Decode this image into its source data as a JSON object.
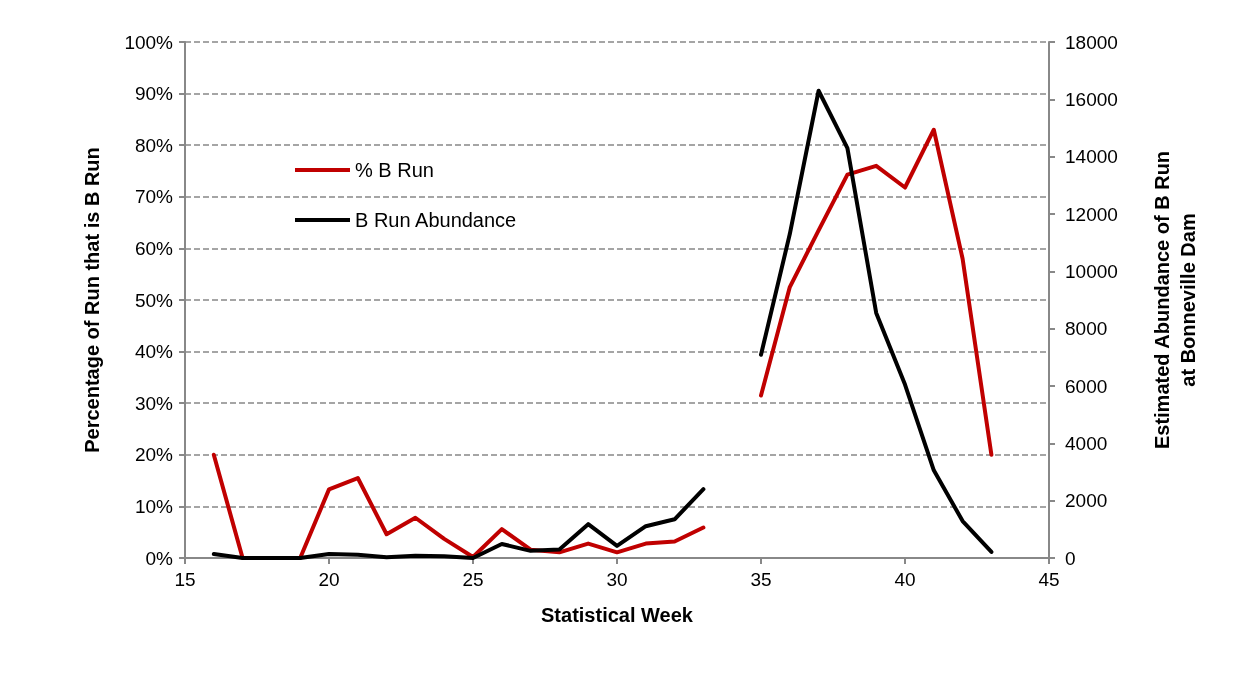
{
  "chart_data": {
    "type": "line",
    "xlabel": "Statistical Week",
    "ylabel": "Percentage of Run that is B Run",
    "y2label": "Estimated Abundance of B Run\nat Bonneville Dam",
    "x": [
      16,
      17,
      18,
      19,
      20,
      21,
      22,
      23,
      24,
      25,
      26,
      27,
      28,
      29,
      30,
      31,
      32,
      33,
      34,
      35,
      36,
      37,
      38,
      39,
      40,
      41,
      42,
      43
    ],
    "series": [
      {
        "name": "% B Run",
        "color": "#c00000",
        "values": [
          20,
          0,
          0,
          0,
          13.3,
          15.5,
          4.6,
          7.8,
          3.7,
          0.2,
          5.6,
          1.6,
          1.1,
          2.8,
          1.1,
          2.8,
          3.2,
          5.9,
          null,
          31.5,
          52.5,
          63.5,
          74.3,
          76,
          71.8,
          83,
          58,
          20
        ]
      },
      {
        "name": "B Run Abundance",
        "color": "#000000",
        "axis": "y2",
        "values": [
          140,
          0,
          0,
          0,
          140,
          110,
          30,
          80,
          60,
          0,
          490,
          250,
          300,
          1180,
          420,
          1110,
          1350,
          2400,
          null,
          7090,
          11300,
          16300,
          14300,
          8550,
          6050,
          3060,
          1290,
          210
        ]
      }
    ],
    "xlim": [
      15,
      45
    ],
    "xticks": [
      15,
      20,
      25,
      30,
      35,
      40,
      45
    ],
    "ylim": [
      0,
      100
    ],
    "yticks": [
      {
        "value": 0,
        "label": "0%"
      },
      {
        "value": 10,
        "label": "10%"
      },
      {
        "value": 20,
        "label": "20%"
      },
      {
        "value": 30,
        "label": "30%"
      },
      {
        "value": 40,
        "label": "40%"
      },
      {
        "value": 50,
        "label": "50%"
      },
      {
        "value": 60,
        "label": "60%"
      },
      {
        "value": 70,
        "label": "70%"
      },
      {
        "value": 80,
        "label": "80%"
      },
      {
        "value": 90,
        "label": "90%"
      },
      {
        "value": 100,
        "label": "100%"
      }
    ],
    "y2lim": [
      0,
      18000
    ],
    "y2ticks": [
      0,
      2000,
      4000,
      6000,
      8000,
      10000,
      12000,
      14000,
      16000,
      18000
    ],
    "grid": "y",
    "legend": "left",
    "marker": "none",
    "line_style": "solid"
  }
}
